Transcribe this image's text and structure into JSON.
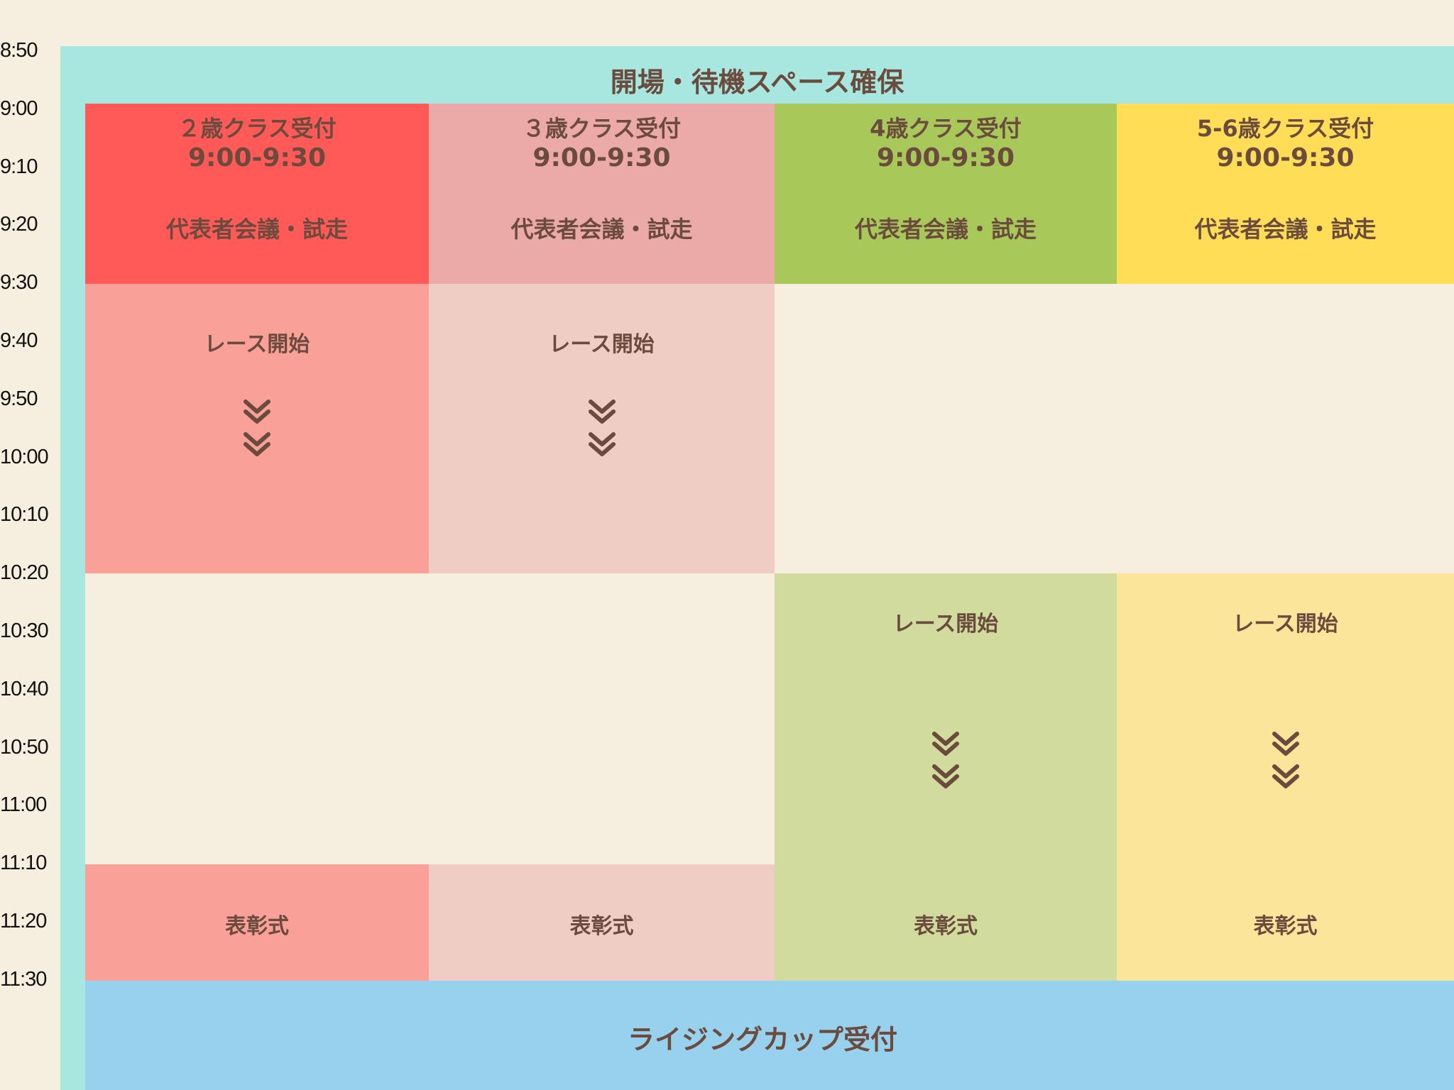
{
  "times": [
    "8:50",
    "9:00",
    "9:10",
    "9:20",
    "9:30",
    "9:40",
    "9:50",
    "10:00",
    "10:10",
    "10:20",
    "10:30",
    "10:40",
    "10:50",
    "11:00",
    "11:10",
    "11:20",
    "11:30"
  ],
  "opening": "開場・待機スペース確保",
  "classes": [
    {
      "reception": "２歳クラス受付",
      "time": "9:00-9:30",
      "meeting": "代表者会議・試走",
      "race": "レース開始",
      "award": "表彰式",
      "color": "#FF5A57",
      "light": "#F9A198"
    },
    {
      "reception": "３歳クラス受付",
      "time": "9:00-9:30",
      "meeting": "代表者会議・試走",
      "race": "レース開始",
      "award": "表彰式",
      "color": "#EBA9A7",
      "light": "#EFCCC4"
    },
    {
      "reception": "4歳クラス受付",
      "time": "9:00-9:30",
      "meeting": "代表者会議・試走",
      "race": "レース開始",
      "award": "表彰式",
      "color": "#A8C95A",
      "light": "#D1DB9D"
    },
    {
      "reception": "5-6歳クラス受付",
      "time": "9:00-9:30",
      "meeting": "代表者会議・試走",
      "race": "レース開始",
      "award": "表彰式",
      "color": "#FFDD57",
      "light": "#FBE59A"
    }
  ],
  "rising_cup": "ライジングカップ受付",
  "colors": {
    "background": "#F6EFE0",
    "teal": "#A8E6E0",
    "blue": "#98D1EE",
    "text": "#6B4B3E"
  },
  "icons": {
    "arrow": "double-chevron-down-icon"
  }
}
